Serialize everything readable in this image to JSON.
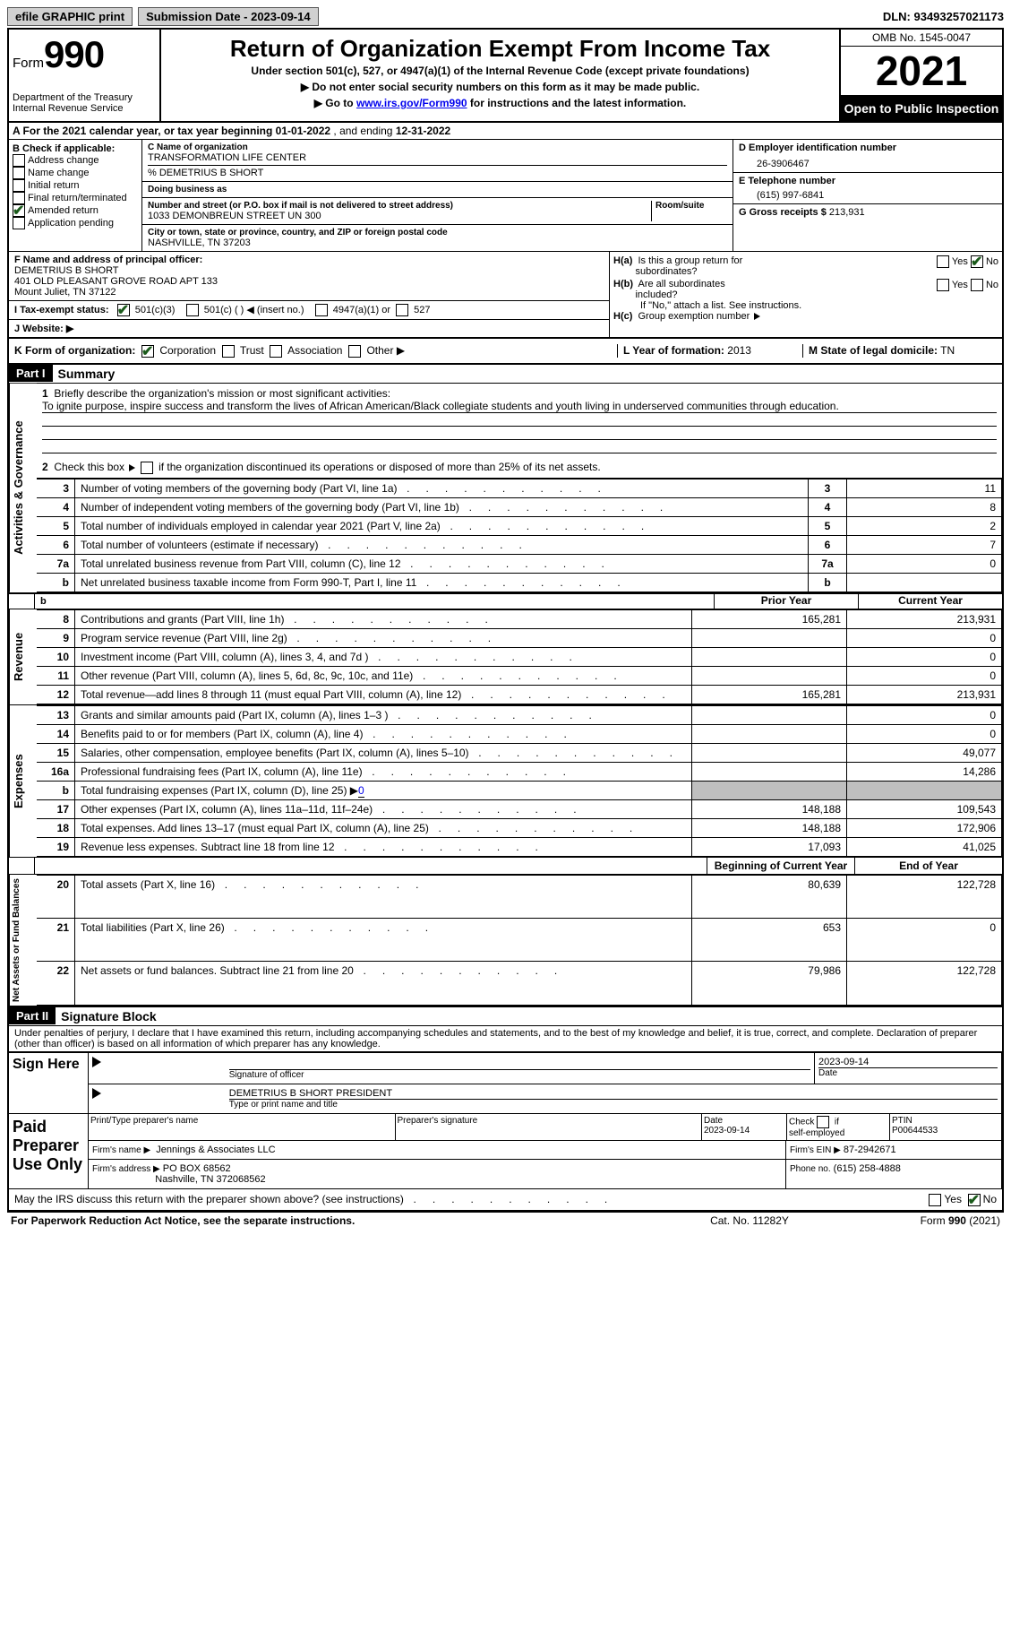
{
  "topbar": {
    "efile": "efile GRAPHIC print",
    "submission": "Submission Date - 2023-09-14",
    "dln": "DLN: 93493257021173"
  },
  "header": {
    "form_word": "Form",
    "form_num": "990",
    "dept": "Department of the Treasury",
    "irs": "Internal Revenue Service",
    "title": "Return of Organization Exempt From Income Tax",
    "subtitle": "Under section 501(c), 527, or 4947(a)(1) of the Internal Revenue Code (except private foundations)",
    "note1": "▶ Do not enter social security numbers on this form as it may be made public.",
    "note2_pre": "▶ Go to ",
    "note2_link": "www.irs.gov/Form990",
    "note2_post": " for instructions and the latest information.",
    "omb": "OMB No. 1545-0047",
    "year": "2021",
    "open": "Open to Public Inspection"
  },
  "rowA": {
    "text_pre": "A For the 2021 calendar year, or tax year beginning ",
    "begin": "01-01-2022",
    "mid": "   , and ending ",
    "end": "12-31-2022"
  },
  "colB": {
    "label": "B Check if applicable:",
    "items": [
      "Address change",
      "Name change",
      "Initial return",
      "Final return/terminated",
      "Amended return",
      "Application pending"
    ],
    "checked_index": 4
  },
  "colC": {
    "name_label": "C Name of organization",
    "name": "TRANSFORMATION LIFE CENTER",
    "care_of": "% DEMETRIUS B SHORT",
    "dba_label": "Doing business as",
    "dba": "",
    "street_label": "Number and street (or P.O. box if mail is not delivered to street address)",
    "street": "1033 DEMONBREUN STREET UN 300",
    "room_label": "Room/suite",
    "city_label": "City or town, state or province, country, and ZIP or foreign postal code",
    "city": "NASHVILLE, TN  37203"
  },
  "colD": {
    "ein_label": "D Employer identification number",
    "ein": "26-3906467",
    "phone_label": "E Telephone number",
    "phone": "(615) 997-6841",
    "gross_label": "G Gross receipts $",
    "gross": "213,931"
  },
  "secF": {
    "label": "F  Name and address of principal officer:",
    "name": "DEMETRIUS B SHORT",
    "addr1": "401 OLD PLEASANT GROVE ROAD APT 133",
    "addr2": "Mount Juliet, TN  37122"
  },
  "secH": {
    "a_label": "H(a)  Is this a group return for subordinates?",
    "b_label": "H(b)  Are all subordinates included?",
    "b_note": "If \"No,\" attach a list. See instructions.",
    "c_label": "H(c)  Group exemption number ▶",
    "yes": "Yes",
    "no": "No"
  },
  "secI": {
    "label": "I   Tax-exempt status:",
    "opt1": "501(c)(3)",
    "opt2": "501(c) (  ) ◀ (insert no.)",
    "opt3": "4947(a)(1) or",
    "opt4": "527"
  },
  "secJ": {
    "label": "J   Website: ▶"
  },
  "secK": {
    "label": "K Form of organization:",
    "opts": [
      "Corporation",
      "Trust",
      "Association",
      "Other ▶"
    ],
    "L_label": "L Year of formation:",
    "L_val": "2013",
    "M_label": "M State of legal domicile:",
    "M_val": "TN"
  },
  "part1": {
    "part": "Part I",
    "title": "Summary",
    "line1_label": "Briefly describe the organization's mission or most significant activities:",
    "mission": "To ignite purpose, inspire success and transform the lives of African American/Black collegiate students and youth living in underserved communities through education.",
    "line2": "Check this box ▶      if the organization discontinued its operations or disposed of more than 25% of its net assets.",
    "vlabels": {
      "ag": "Activities & Governance",
      "rev": "Revenue",
      "exp": "Expenses",
      "na": "Net Assets or Fund Balances"
    },
    "cols": {
      "prior": "Prior Year",
      "current": "Current Year",
      "begin": "Beginning of Current Year",
      "end": "End of Year"
    },
    "rows_ag": [
      {
        "n": "3",
        "t": "Number of voting members of the governing body (Part VI, line 1a)",
        "v": "11"
      },
      {
        "n": "4",
        "t": "Number of independent voting members of the governing body (Part VI, line 1b)",
        "v": "8"
      },
      {
        "n": "5",
        "t": "Total number of individuals employed in calendar year 2021 (Part V, line 2a)",
        "v": "2"
      },
      {
        "n": "6",
        "t": "Total number of volunteers (estimate if necessary)",
        "v": "7"
      },
      {
        "n": "7a",
        "t": "Total unrelated business revenue from Part VIII, column (C), line 12",
        "v": "0"
      },
      {
        "n": "b",
        "t": "Net unrelated business taxable income from Form 990-T, Part I, line 11",
        "v": ""
      }
    ],
    "rows_rev": [
      {
        "n": "8",
        "t": "Contributions and grants (Part VIII, line 1h)",
        "p": "165,281",
        "c": "213,931"
      },
      {
        "n": "9",
        "t": "Program service revenue (Part VIII, line 2g)",
        "p": "",
        "c": "0"
      },
      {
        "n": "10",
        "t": "Investment income (Part VIII, column (A), lines 3, 4, and 7d )",
        "p": "",
        "c": "0"
      },
      {
        "n": "11",
        "t": "Other revenue (Part VIII, column (A), lines 5, 6d, 8c, 9c, 10c, and 11e)",
        "p": "",
        "c": "0"
      },
      {
        "n": "12",
        "t": "Total revenue—add lines 8 through 11 (must equal Part VIII, column (A), line 12)",
        "p": "165,281",
        "c": "213,931"
      }
    ],
    "rows_exp": [
      {
        "n": "13",
        "t": "Grants and similar amounts paid (Part IX, column (A), lines 1–3 )",
        "p": "",
        "c": "0"
      },
      {
        "n": "14",
        "t": "Benefits paid to or for members (Part IX, column (A), line 4)",
        "p": "",
        "c": "0"
      },
      {
        "n": "15",
        "t": "Salaries, other compensation, employee benefits (Part IX, column (A), lines 5–10)",
        "p": "",
        "c": "49,077"
      },
      {
        "n": "16a",
        "t": "Professional fundraising fees (Part IX, column (A), line 11e)",
        "p": "",
        "c": "14,286"
      },
      {
        "n": "b",
        "t": "Total fundraising expenses (Part IX, column (D), line 25) ▶",
        "p": "SHADE",
        "c": "SHADE",
        "extra": "0"
      },
      {
        "n": "17",
        "t": "Other expenses (Part IX, column (A), lines 11a–11d, 11f–24e)",
        "p": "148,188",
        "c": "109,543"
      },
      {
        "n": "18",
        "t": "Total expenses. Add lines 13–17 (must equal Part IX, column (A), line 25)",
        "p": "148,188",
        "c": "172,906"
      },
      {
        "n": "19",
        "t": "Revenue less expenses. Subtract line 18 from line 12",
        "p": "17,093",
        "c": "41,025"
      }
    ],
    "rows_na": [
      {
        "n": "20",
        "t": "Total assets (Part X, line 16)",
        "p": "80,639",
        "c": "122,728"
      },
      {
        "n": "21",
        "t": "Total liabilities (Part X, line 26)",
        "p": "653",
        "c": "0"
      },
      {
        "n": "22",
        "t": "Net assets or fund balances. Subtract line 21 from line 20",
        "p": "79,986",
        "c": "122,728"
      }
    ],
    "b7b": "7b"
  },
  "part2": {
    "part": "Part II",
    "title": "Signature Block",
    "decl": "Under penalties of perjury, I declare that I have examined this return, including accompanying schedules and statements, and to the best of my knowledge and belief, it is true, correct, and complete. Declaration of preparer (other than officer) is based on all information of which preparer has any knowledge.",
    "sign_here": "Sign Here",
    "sig_officer": "Signature of officer",
    "date": "Date",
    "sig_date": "2023-09-14",
    "officer_name": "DEMETRIUS B SHORT PRESIDENT",
    "type_name": "Type or print name and title",
    "paid": "Paid Preparer Use Only",
    "prep_name_label": "Print/Type preparer's name",
    "prep_sig_label": "Preparer's signature",
    "prep_date_label": "Date",
    "prep_date": "2023-09-14",
    "check_self": "Check        if self-employed",
    "ptin_label": "PTIN",
    "ptin": "P00644533",
    "firm_name_label": "Firm's name   ▶",
    "firm_name": "Jennings & Associates LLC",
    "firm_ein_label": "Firm's EIN ▶",
    "firm_ein": "87-2942671",
    "firm_addr_label": "Firm's address ▶",
    "firm_addr1": "PO BOX 68562",
    "firm_addr2": "Nashville, TN  372068562",
    "firm_phone_label": "Phone no.",
    "firm_phone": "(615) 258-4888",
    "may_irs": "May the IRS discuss this return with the preparer shown above? (see instructions)"
  },
  "footer": {
    "pra": "For Paperwork Reduction Act Notice, see the separate instructions.",
    "cat": "Cat. No. 11282Y",
    "form": "Form 990 (2021)"
  }
}
